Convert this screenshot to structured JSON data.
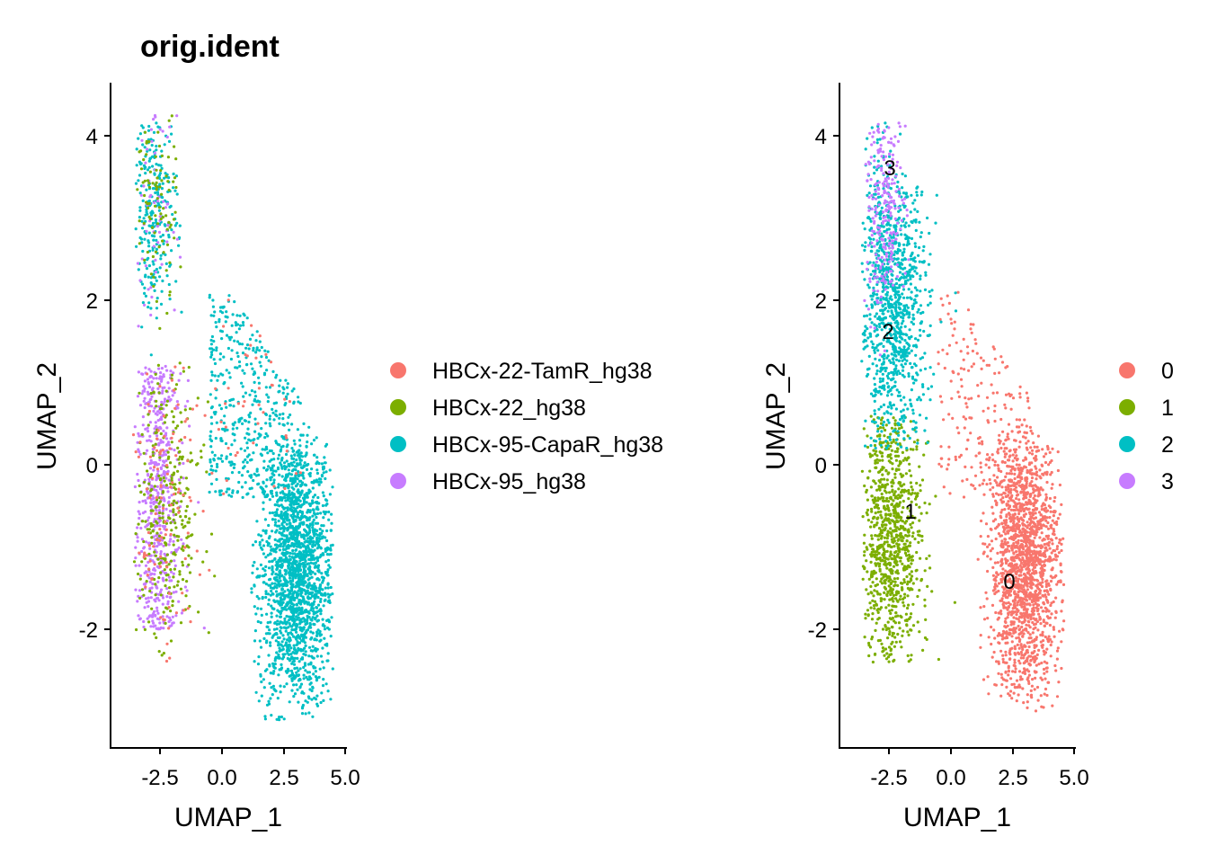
{
  "chart_data": [
    {
      "type": "scatter",
      "title": "orig.ident",
      "xlabel": "UMAP_1",
      "ylabel": "UMAP_2",
      "xlim": [
        -4.4,
        5.2
      ],
      "ylim": [
        -3.4,
        4.6
      ],
      "xticks": [
        -2.5,
        0.0,
        2.5,
        5.0
      ],
      "xtick_labels": [
        "-2.5",
        "0.0",
        "2.5",
        "5.0"
      ],
      "yticks": [
        -2,
        0,
        2,
        4
      ],
      "ytick_labels": [
        "-2",
        "0",
        "2",
        "4"
      ],
      "grid": false,
      "legend_position": "right",
      "series": [
        {
          "name": "HBCx-22-TamR_hg38",
          "color": "#F8766D",
          "n_points": 180
        },
        {
          "name": "HBCx-22_hg38",
          "color": "#7CAE00",
          "n_points": 420
        },
        {
          "name": "HBCx-95-CapaR_hg38",
          "color": "#00BFC4",
          "n_points": 2600
        },
        {
          "name": "HBCx-95_hg38",
          "color": "#C77CFF",
          "n_points": 820
        }
      ]
    },
    {
      "type": "scatter",
      "title": "",
      "xlabel": "UMAP_1",
      "ylabel": "UMAP_2",
      "xlim": [
        -4.4,
        5.2
      ],
      "ylim": [
        -3.4,
        4.6
      ],
      "xticks": [
        -2.5,
        0.0,
        2.5,
        5.0
      ],
      "xtick_labels": [
        "-2.5",
        "0.0",
        "2.5",
        "5.0"
      ],
      "yticks": [
        -2,
        0,
        2,
        4
      ],
      "ytick_labels": [
        "-2",
        "0",
        "2",
        "4"
      ],
      "grid": false,
      "legend_position": "right",
      "series": [
        {
          "name": "0",
          "color": "#F8766D",
          "n_points": 1750
        },
        {
          "name": "1",
          "color": "#7CAE00",
          "n_points": 950
        },
        {
          "name": "2",
          "color": "#00BFC4",
          "n_points": 1000
        },
        {
          "name": "3",
          "color": "#C77CFF",
          "n_points": 300
        }
      ],
      "cluster_labels": [
        {
          "text": "0",
          "x": 2.4,
          "y": -1.4
        },
        {
          "text": "1",
          "x": -1.6,
          "y": -0.55
        },
        {
          "text": "2",
          "x": -2.55,
          "y": 1.6
        },
        {
          "text": "3",
          "x": -2.5,
          "y": 3.6
        }
      ]
    }
  ]
}
